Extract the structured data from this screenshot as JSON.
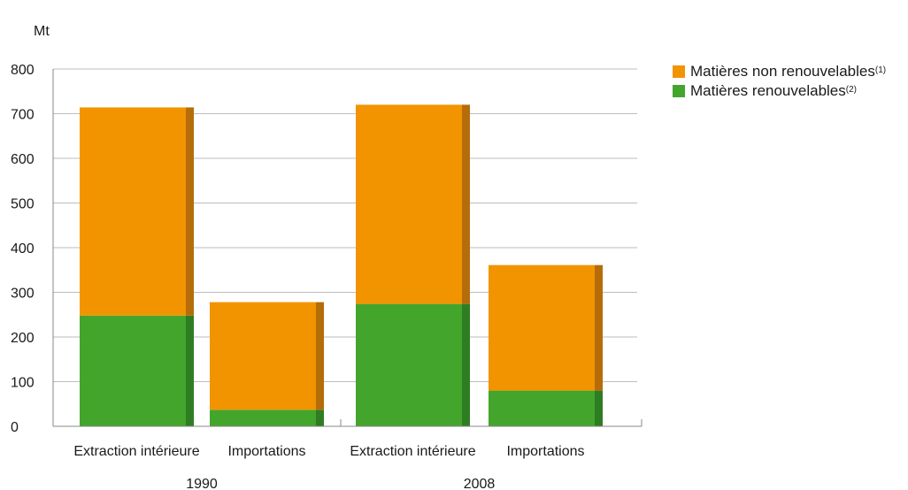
{
  "chart_data": {
    "type": "bar",
    "stacked": true,
    "ylabel": "Mt",
    "ylim": [
      0,
      800
    ],
    "yticks": [
      0,
      100,
      200,
      300,
      400,
      500,
      600,
      700,
      800
    ],
    "grid": true,
    "legend_position": "top-right",
    "groups": [
      {
        "label": "1990",
        "categories": [
          "Extraction intérieure",
          "Importations"
        ]
      },
      {
        "label": "2008",
        "categories": [
          "Extraction intérieure",
          "Importations"
        ]
      }
    ],
    "categories": [
      "Extraction intérieure",
      "Importations",
      "Extraction intérieure",
      "Importations"
    ],
    "series": [
      {
        "name": "Matières renouvelables",
        "note": "(2)",
        "color": "#43a52c",
        "side_color": "#2e7d22",
        "values": [
          248,
          37,
          274,
          80
        ]
      },
      {
        "name": "Matières non renouvelables",
        "note": "(1)",
        "color": "#f29400",
        "side_color": "#b56d0a",
        "values": [
          466,
          241,
          446,
          281
        ]
      }
    ]
  }
}
